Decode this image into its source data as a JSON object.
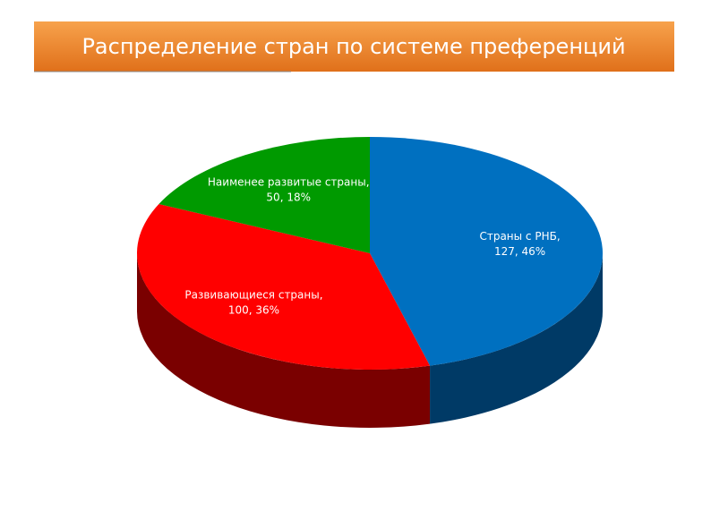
{
  "chart_data": {
    "type": "pie3d",
    "title": "Распределение стран по системе преференций",
    "categories": [
      "Страны с РНБ",
      "Развивающиеся страны",
      "Наименее развитые страны"
    ],
    "values": [
      127,
      100,
      50
    ],
    "percent_labels": [
      "46%",
      "36%",
      "18%"
    ],
    "label_separator": ", ",
    "colors": [
      "#0070c0",
      "#ff0000",
      "#009a00"
    ],
    "side_colors": [
      "#003a66",
      "#7a0000",
      "#004d00"
    ]
  }
}
